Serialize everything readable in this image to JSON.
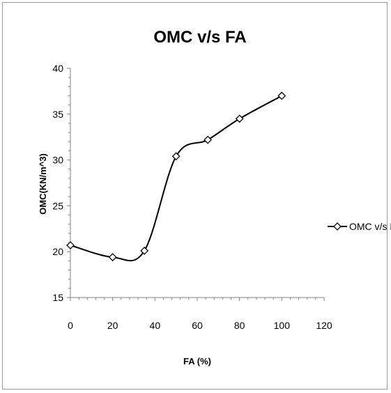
{
  "chart_data": {
    "type": "line",
    "title": "OMC v/s FA",
    "xlabel": "FA (%)",
    "ylabel": "OMC(KN/m^3)",
    "xlim": [
      0,
      120
    ],
    "ylim": [
      15,
      40
    ],
    "xticks": [
      0,
      20,
      40,
      60,
      80,
      100,
      120
    ],
    "yticks": [
      15,
      20,
      25,
      30,
      35,
      40
    ],
    "grid": false,
    "legend_position": "right",
    "series": [
      {
        "name": "OMC v/s FA",
        "color": "#000000",
        "marker": "diamond",
        "smooth": true,
        "x": [
          0,
          20,
          35,
          50,
          65,
          80,
          100
        ],
        "y": [
          20.7,
          19.4,
          20.1,
          30.4,
          32.2,
          34.5,
          37.0
        ]
      }
    ]
  }
}
